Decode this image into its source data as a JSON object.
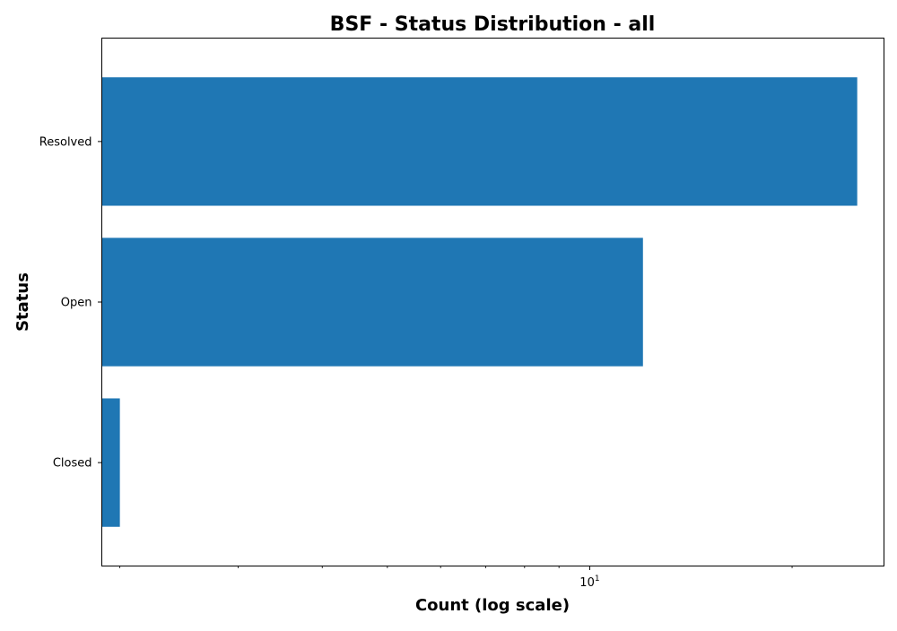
{
  "chart_data": {
    "type": "bar",
    "orientation": "horizontal",
    "title": "BSF - Status Distribution - all",
    "xlabel": "Count (log scale)",
    "ylabel": "Status",
    "x_scale": "log",
    "xlim": [
      1.88,
      27.4
    ],
    "categories": [
      "Closed",
      "Open",
      "Resolved"
    ],
    "values": [
      2,
      12,
      25
    ],
    "color": "#1f77b4",
    "grid": false,
    "legend": "none",
    "x_tick_label": {
      "base": "10",
      "exponent": "1"
    }
  }
}
